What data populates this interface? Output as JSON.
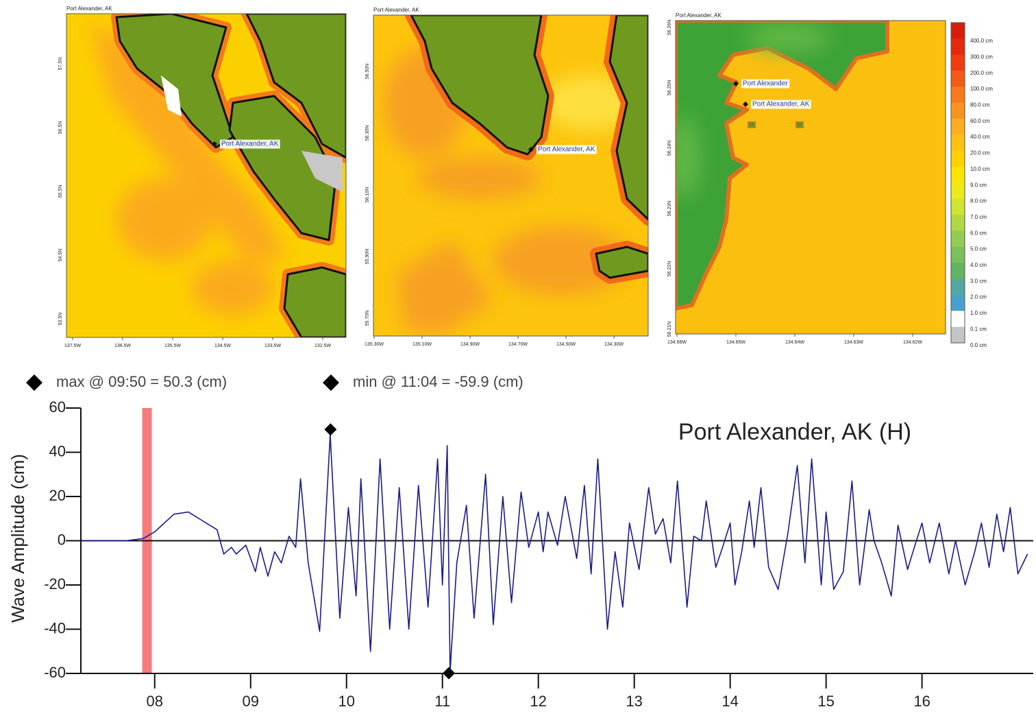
{
  "maps": [
    {
      "title": "Port Alexander, AK",
      "lon_labels": [
        "137.5W",
        "136.5W",
        "135.5W",
        "134.5W",
        "133.5W",
        "132.5W"
      ],
      "lat_labels": [
        "57.5N",
        "56.5N",
        "55.5N",
        "54.5N",
        "53.5N"
      ],
      "stations": [
        "Port Alexander, AK"
      ]
    },
    {
      "title": "Port Alexander, AK",
      "lon_labels": [
        "135.30W",
        "135.10W",
        "134.90W",
        "134.70W",
        "134.50W",
        "134.30W"
      ],
      "lat_labels": [
        "56.50N",
        "56.30N",
        "56.10N",
        "55.90N",
        "55.70N"
      ],
      "stations": [
        "Port Alexander, AK"
      ]
    },
    {
      "title": "Port Alexander, AK",
      "lon_labels": [
        "134.66W",
        "134.65W",
        "134.64W",
        "134.63W",
        "134.62W"
      ],
      "lat_labels": [
        "56.26N",
        "56.25N",
        "56.24N",
        "56.23N",
        "56.22N",
        "56.21N"
      ],
      "stations": [
        "Port Alexander",
        "Port Alexander, AK"
      ]
    }
  ],
  "colorbar": {
    "labels": [
      "400.0 cm",
      "300.0 cm",
      "200.0 cm",
      "100.0 cm",
      "80.0 cm",
      "60.0 cm",
      "40.0 cm",
      "20.0 cm",
      "10.0 cm",
      "9.0 cm",
      "8.0 cm",
      "7.0 cm",
      "6.0 cm",
      "5.0 cm",
      "4.0 cm",
      "3.0 cm",
      "2.0 cm",
      "1.0 cm",
      "0.1 cm",
      "0.0 cm"
    ],
    "colors": [
      "#d81e0a",
      "#e8280c",
      "#f03c10",
      "#f45a14",
      "#f87a1a",
      "#fa9420",
      "#fcae20",
      "#fcc210",
      "#fdd200",
      "#fde400",
      "#eeea18",
      "#d0e434",
      "#b2d844",
      "#94cc52",
      "#78c05a",
      "#62b464",
      "#52a8a0",
      "#4aa0cc",
      "#ffffff",
      "#c4c4c4"
    ]
  },
  "chart_data": {
    "type": "line",
    "title": "Port Alexander, AK (H)",
    "y_label": "Wave Amplitude (cm)",
    "xlim": [
      7.23,
      17.16
    ],
    "ylim": [
      -60,
      60
    ],
    "xticks": [
      {
        "value": 8,
        "label": "08"
      },
      {
        "value": 9,
        "label": "09"
      },
      10,
      11,
      12,
      13,
      14,
      15,
      16
    ],
    "yticks": [
      -60,
      -40,
      -20,
      0,
      20,
      40,
      60
    ],
    "hline": 0,
    "highlight": {
      "x": [
        7.87,
        7.97
      ],
      "color": "#f47c7c"
    },
    "markers": [
      {
        "label": "max @ 09:50 = 50.3 (cm)",
        "x": 9.833,
        "y": 50.3
      },
      {
        "label": "min @ 11:04 = -59.9 (cm)",
        "x": 11.067,
        "y": -59.9
      }
    ],
    "x": [
      7.25,
      7.5,
      7.7,
      7.88,
      8.0,
      8.2,
      8.35,
      8.5,
      8.65,
      8.72,
      8.8,
      8.85,
      8.95,
      9.05,
      9.1,
      9.18,
      9.25,
      9.32,
      9.4,
      9.47,
      9.52,
      9.6,
      9.72,
      9.83,
      9.93,
      10.02,
      10.1,
      10.15,
      10.25,
      10.35,
      10.45,
      10.55,
      10.65,
      10.75,
      10.85,
      10.95,
      11.0,
      11.05,
      11.08,
      11.15,
      11.25,
      11.33,
      11.45,
      11.53,
      11.63,
      11.72,
      11.82,
      11.9,
      12.0,
      12.05,
      12.1,
      12.2,
      12.28,
      12.4,
      12.48,
      12.55,
      12.62,
      12.72,
      12.8,
      12.88,
      12.95,
      13.05,
      13.15,
      13.22,
      13.3,
      13.38,
      13.45,
      13.55,
      13.62,
      13.7,
      13.75,
      13.85,
      13.92,
      14.0,
      14.05,
      14.12,
      14.2,
      14.25,
      14.32,
      14.4,
      14.5,
      14.6,
      14.7,
      14.78,
      14.85,
      14.95,
      15.0,
      15.08,
      15.18,
      15.27,
      15.35,
      15.45,
      15.5,
      15.58,
      15.68,
      15.75,
      15.85,
      15.92,
      16.0,
      16.08,
      16.18,
      16.28,
      16.35,
      16.45,
      16.55,
      16.62,
      16.7,
      16.78,
      16.85,
      16.92,
      17.0,
      17.1
    ],
    "series": [
      {
        "name": "Port Alexander, AK (H)",
        "color": "#1a1a8c",
        "values": [
          0,
          0,
          0,
          1,
          4,
          12,
          13,
          9,
          5,
          -6,
          -3,
          -6,
          -2,
          -14,
          -3,
          -16,
          -5,
          -10,
          2,
          -3,
          28,
          -10,
          -41,
          48,
          -35,
          15,
          -25,
          28,
          -50,
          37,
          -40,
          24,
          -40,
          25,
          -30,
          37,
          -20,
          43,
          -59,
          -10,
          16,
          -35,
          30,
          -38,
          20,
          -28,
          22,
          -3,
          13,
          -5,
          13,
          -2,
          20,
          -8,
          25,
          -15,
          37,
          -40,
          -5,
          -30,
          8,
          -13,
          24,
          3,
          10,
          -10,
          27,
          -30,
          2,
          0,
          18,
          -12,
          -3,
          8,
          -20,
          -5,
          18,
          -3,
          24,
          -12,
          -22,
          3,
          34,
          -10,
          37,
          -20,
          13,
          -22,
          -14,
          27,
          -20,
          14,
          0,
          -10,
          -25,
          7,
          -13,
          -3,
          8,
          -10,
          8,
          -15,
          0,
          -20,
          -5,
          8,
          -12,
          12,
          -5,
          15,
          -15,
          -6
        ]
      }
    ]
  }
}
